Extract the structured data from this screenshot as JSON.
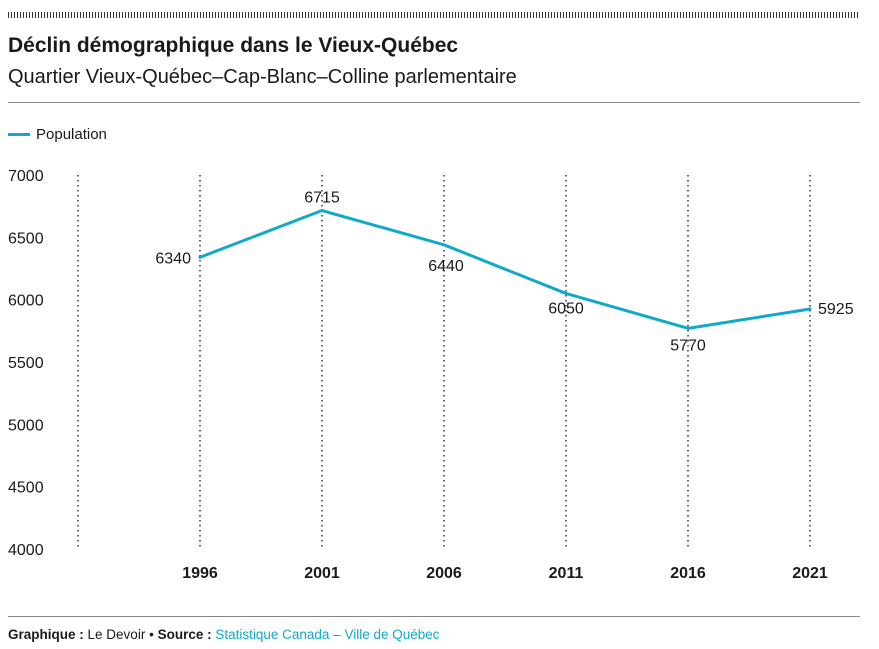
{
  "header": {
    "title": "Déclin démographique dans le Vieux-Québec",
    "subtitle": "Quartier Vieux-Québec–Cap-Blanc–Colline parlementaire"
  },
  "legend": {
    "label": "Population"
  },
  "footer": {
    "credit_label": "Graphique :",
    "credit_value": "Le Devoir",
    "separator": "•",
    "source_label": "Source :",
    "source_value": "Statistique Canada – Ville de Québec"
  },
  "colors": {
    "line": "#12a9c9",
    "source_text": "#12a9c9",
    "text": "#1a1a1a"
  },
  "chart_data": {
    "type": "line",
    "title": "Déclin démographique dans le Vieux-Québec",
    "subtitle": "Quartier Vieux-Québec–Cap-Blanc–Colline parlementaire",
    "categories": [
      "1996",
      "2001",
      "2006",
      "2011",
      "2016",
      "2021"
    ],
    "series": [
      {
        "name": "Population",
        "values": [
          6340,
          6715,
          6440,
          6050,
          5770,
          5925
        ]
      }
    ],
    "ylim": [
      4000,
      7000
    ],
    "yticks": [
      7000,
      6500,
      6000,
      5500,
      5000,
      4500,
      4000
    ],
    "grid": "vertical dotted lines",
    "legend_position": "top-left"
  }
}
